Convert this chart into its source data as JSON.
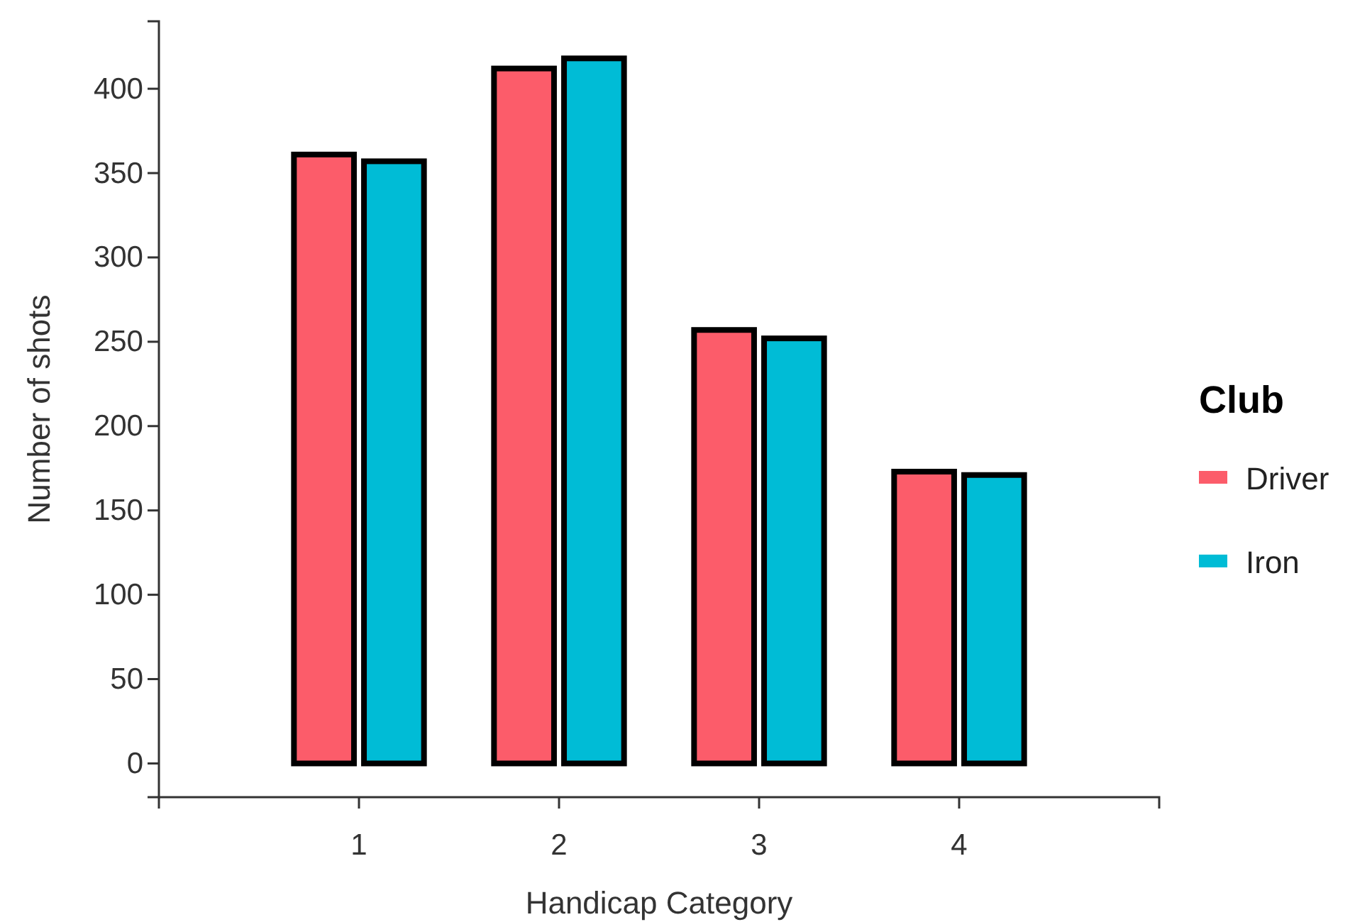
{
  "chart_data": {
    "type": "bar",
    "xlabel": "Handicap Category",
    "ylabel": "Number of shots",
    "legend_title": "Club",
    "x": [
      1,
      2,
      3,
      4
    ],
    "xlim": [
      0,
      5
    ],
    "xticks": [
      1,
      2,
      3,
      4
    ],
    "ylim": [
      -20,
      440
    ],
    "yticks": [
      0,
      50,
      100,
      150,
      200,
      250,
      300,
      350,
      400
    ],
    "series": [
      {
        "name": "Driver",
        "color": "#fc5c6a",
        "values": [
          361,
          412,
          257,
          173
        ]
      },
      {
        "name": "Iron",
        "color": "#00bcd6",
        "values": [
          357,
          418,
          252,
          171
        ]
      }
    ],
    "grid": false,
    "legend": "right"
  }
}
